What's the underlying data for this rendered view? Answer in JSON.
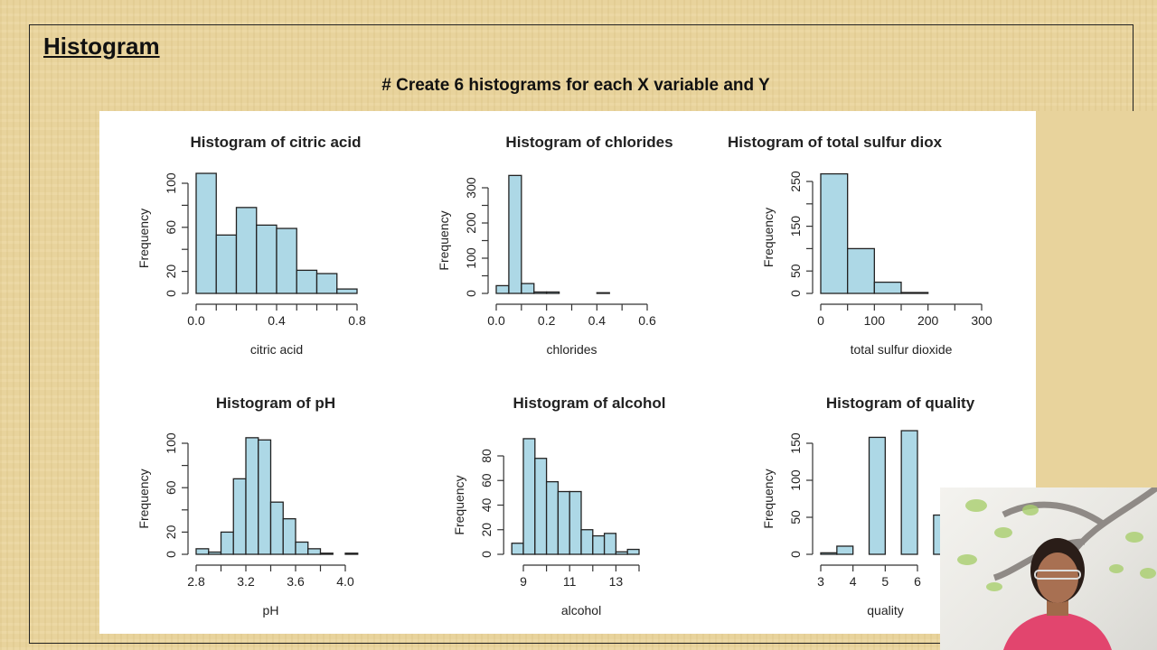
{
  "slide": {
    "title": "Histogram",
    "subtitle": "# Create 6 histograms for each X variable and Y"
  },
  "colors": {
    "bar_fill": "#add8e6",
    "bar_stroke": "#222222",
    "background": "#e8d39c"
  },
  "chart_data": [
    {
      "type": "bar",
      "title": "Histogram of citric acid",
      "xlabel": "citric acid",
      "ylabel": "Frequency",
      "bin_start": 0.0,
      "bin_width": 0.1,
      "values": [
        109,
        53,
        78,
        62,
        59,
        21,
        18,
        4
      ],
      "xlim": [
        0,
        0.8
      ],
      "x_ticks": [
        0,
        0.1,
        0.2,
        0.3,
        0.4,
        0.5,
        0.6,
        0.7,
        0.8
      ],
      "x_tick_labels": [
        "0.0",
        "0.4",
        "0.8"
      ],
      "x_tick_label_values": [
        0,
        0.4,
        0.8
      ],
      "ylim": [
        0,
        100
      ],
      "y_ticks": [
        0,
        20,
        40,
        60,
        80,
        100
      ],
      "y_tick_labels": [
        "0",
        "20",
        "60",
        "100"
      ],
      "y_tick_label_values": [
        0,
        20,
        60,
        100
      ]
    },
    {
      "type": "bar",
      "title": "Histogram of chlorides",
      "xlabel": "chlorides",
      "ylabel": "Frequency",
      "bin_start": 0.0,
      "bin_width": 0.05,
      "values": [
        22,
        335,
        28,
        4,
        4,
        0,
        0,
        0,
        2,
        0,
        0,
        0,
        0
      ],
      "xlim": [
        0,
        0.6
      ],
      "x_ticks": [
        0,
        0.1,
        0.2,
        0.3,
        0.4,
        0.5,
        0.6
      ],
      "x_tick_labels": [
        "0.0",
        "0.2",
        "0.4",
        "0.6"
      ],
      "x_tick_label_values": [
        0,
        0.2,
        0.4,
        0.6
      ],
      "ylim": [
        0,
        300
      ],
      "y_ticks": [
        0,
        50,
        100,
        150,
        200,
        250,
        300
      ],
      "y_tick_labels": [
        "0",
        "100",
        "200",
        "300"
      ],
      "y_tick_label_values": [
        0,
        100,
        200,
        300
      ]
    },
    {
      "type": "bar",
      "title": "Histogram of total sulfur diox",
      "xlabel": "total sulfur dioxide",
      "ylabel": "Frequency",
      "bin_start": 0,
      "bin_width": 50,
      "values": [
        267,
        100,
        25,
        2,
        0,
        0
      ],
      "xlim": [
        0,
        300
      ],
      "x_ticks": [
        0,
        50,
        100,
        150,
        200,
        250,
        300
      ],
      "x_tick_labels": [
        "0",
        "100",
        "200",
        "300"
      ],
      "x_tick_label_values": [
        0,
        100,
        200,
        300
      ],
      "ylim": [
        0,
        250
      ],
      "y_ticks": [
        0,
        50,
        100,
        150,
        200,
        250
      ],
      "y_tick_labels": [
        "0",
        "50",
        "150",
        "250"
      ],
      "y_tick_label_values": [
        0,
        50,
        150,
        250
      ]
    },
    {
      "type": "bar",
      "title": "Histogram of pH",
      "xlabel": "pH",
      "ylabel": "Frequency",
      "bin_start": 2.8,
      "bin_width": 0.1,
      "values": [
        5,
        2,
        20,
        68,
        105,
        103,
        47,
        32,
        11,
        5,
        1,
        0,
        1
      ],
      "xlim": [
        2.8,
        4.0
      ],
      "x_ticks": [
        2.8,
        3.0,
        3.2,
        3.4,
        3.6,
        3.8,
        4.0
      ],
      "x_tick_labels": [
        "2.8",
        "3.2",
        "3.6",
        "4.0"
      ],
      "x_tick_label_values": [
        2.8,
        3.2,
        3.6,
        4.0
      ],
      "ylim": [
        0,
        100
      ],
      "y_ticks": [
        0,
        20,
        40,
        60,
        80,
        100
      ],
      "y_tick_labels": [
        "0",
        "20",
        "60",
        "100"
      ],
      "y_tick_label_values": [
        0,
        20,
        60,
        100
      ]
    },
    {
      "type": "bar",
      "title": "Histogram of alcohol",
      "xlabel": "alcohol",
      "ylabel": "Frequency",
      "bin_start": 8.5,
      "bin_width": 0.5,
      "values": [
        9,
        94,
        78,
        59,
        51,
        51,
        20,
        15,
        17,
        2,
        4
      ],
      "xlim": [
        9,
        14
      ],
      "x_ticks": [
        9,
        10,
        11,
        12,
        13,
        14
      ],
      "x_tick_labels": [
        "9",
        "11",
        "13"
      ],
      "x_tick_label_values": [
        9,
        11,
        13
      ],
      "ylim": [
        0,
        80
      ],
      "y_ticks": [
        0,
        20,
        40,
        60,
        80
      ],
      "y_tick_labels": [
        "0",
        "20",
        "40",
        "60",
        "80"
      ],
      "y_tick_label_values": [
        0,
        20,
        40,
        60,
        80
      ]
    },
    {
      "type": "bar",
      "title": "Histogram of quality",
      "xlabel": "quality",
      "ylabel": "Frequency",
      "bin_start": 3,
      "bin_width": 0.5,
      "values": [
        2,
        11,
        0,
        158,
        0,
        167,
        0,
        53
      ],
      "xlim": [
        3,
        6
      ],
      "x_ticks": [
        3,
        4,
        5,
        6
      ],
      "x_tick_labels": [
        "3",
        "4",
        "5",
        "6"
      ],
      "x_tick_label_values": [
        3,
        4,
        5,
        6
      ],
      "ylim": [
        0,
        150
      ],
      "y_ticks": [
        0,
        50,
        100,
        150
      ],
      "y_tick_labels": [
        "0",
        "50",
        "100",
        "150"
      ],
      "y_tick_label_values": [
        0,
        50,
        100,
        150
      ]
    }
  ]
}
